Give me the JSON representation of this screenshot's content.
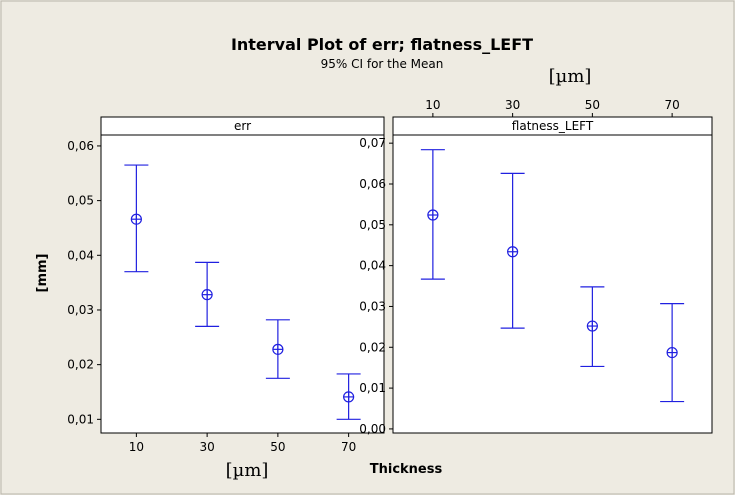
{
  "chart_data": {
    "type": "interval",
    "title": "Interval Plot of err; flatness_LEFT",
    "subtitle": "95% CI for the Mean",
    "xlabel": "Thickness",
    "ylabel": "[mm]",
    "unit_label_top": "[µm]",
    "unit_label_bottom": "[µm]",
    "colors": {
      "background": "#eeebe2",
      "interval": "#2020e0",
      "frame": "#000000"
    },
    "panels": [
      {
        "name": "err",
        "x": [
          "10",
          "30",
          "50",
          "70"
        ],
        "ylim": [
          0.0075,
          0.062
        ],
        "yticks": [
          0.01,
          0.02,
          0.03,
          0.04,
          0.05,
          0.06
        ],
        "ytick_labels": [
          "0,01",
          "0,02",
          "0,03",
          "0,04",
          "0,05",
          "0,06"
        ],
        "xtick_labels": [
          "10",
          "30",
          "50",
          "70"
        ],
        "xticks_position": "bottom",
        "mean": [
          0.0466,
          0.0328,
          0.0228,
          0.0141
        ],
        "lower": [
          0.037,
          0.027,
          0.0175,
          0.01
        ],
        "upper": [
          0.0565,
          0.0387,
          0.0282,
          0.0183
        ]
      },
      {
        "name": "flatness_LEFT",
        "x": [
          "10",
          "30",
          "50",
          "70"
        ],
        "ylim": [
          -0.001,
          0.072
        ],
        "yticks": [
          0.0,
          0.01,
          0.02,
          0.03,
          0.04,
          0.05,
          0.06,
          0.07
        ],
        "ytick_labels": [
          "0,00",
          "0,01",
          "0,02",
          "0,03",
          "0,04",
          "0,05",
          "0,06",
          "0,07"
        ],
        "xtick_labels": [
          "10",
          "30",
          "50",
          "70"
        ],
        "xticks_position": "top",
        "mean": [
          0.0524,
          0.0434,
          0.0252,
          0.0187
        ],
        "lower": [
          0.0367,
          0.0247,
          0.0153,
          0.0067
        ],
        "upper": [
          0.0684,
          0.0626,
          0.0348,
          0.0307
        ]
      }
    ]
  }
}
